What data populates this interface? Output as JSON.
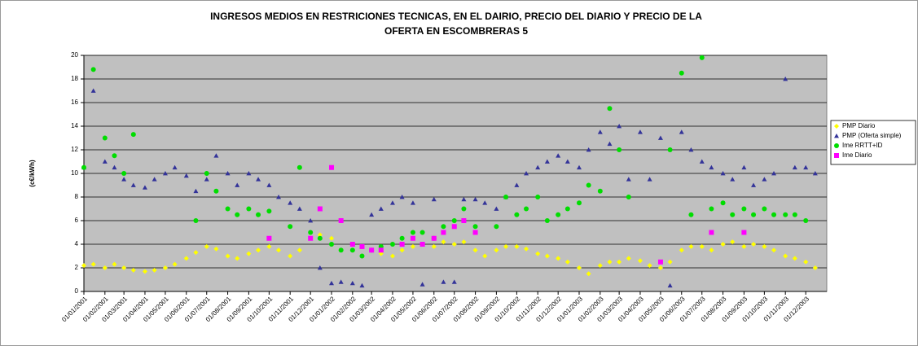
{
  "chart_data": {
    "type": "scatter",
    "title": [
      "INGRESOS MEDIOS EN RESTRICIONES TECNICAS, EN EL DAIRIO, PRECIO DEL DIARIO Y PRECIO DE LA",
      "OFERTA EN  ESCOMBRERAS 5"
    ],
    "y_label": "(c€/kWh)",
    "legend": "right",
    "grid": true,
    "ylim": [
      0,
      20
    ],
    "yticks": [
      0,
      2,
      4,
      6,
      8,
      10,
      12,
      14,
      16,
      18,
      20
    ],
    "xlim": [
      "01/01/2001",
      "01/01/2004"
    ],
    "xticks": [
      "01/01/2001",
      "01/02/2001",
      "01/03/2001",
      "01/04/2001",
      "01/05/2001",
      "01/06/2001",
      "01/07/2001",
      "01/08/2001",
      "01/09/2001",
      "01/10/2001",
      "01/11/2001",
      "01/12/2001",
      "01/01/2002",
      "01/02/2002",
      "01/03/2002",
      "01/04/2002",
      "01/05/2002",
      "01/06/2002",
      "01/07/2002",
      "01/08/2002",
      "01/09/2002",
      "01/10/2002",
      "01/11/2002",
      "01/12/2002",
      "01/01/2003",
      "01/02/2003",
      "01/03/2003",
      "01/04/2003",
      "01/05/2003",
      "01/06/2003",
      "01/07/2003",
      "01/08/2003",
      "01/09/2003",
      "01/10/2003",
      "01/11/2003",
      "01/12/2003"
    ],
    "x": [
      "01/01/2001",
      "15/01/2001",
      "01/02/2001",
      "15/02/2001",
      "01/03/2001",
      "15/03/2001",
      "01/04/2001",
      "15/04/2001",
      "01/05/2001",
      "15/05/2001",
      "01/06/2001",
      "15/06/2001",
      "01/07/2001",
      "15/07/2001",
      "01/08/2001",
      "15/08/2001",
      "01/09/2001",
      "15/09/2001",
      "01/10/2001",
      "15/10/2001",
      "01/11/2001",
      "15/11/2001",
      "01/12/2001",
      "15/12/2001",
      "01/01/2002",
      "15/01/2002",
      "01/02/2002",
      "15/02/2002",
      "01/03/2002",
      "15/03/2002",
      "01/04/2002",
      "15/04/2002",
      "01/05/2002",
      "15/05/2002",
      "01/06/2002",
      "15/06/2002",
      "01/07/2002",
      "15/07/2002",
      "01/08/2002",
      "15/08/2002",
      "01/09/2002",
      "15/09/2002",
      "01/10/2002",
      "15/10/2002",
      "01/11/2002",
      "15/11/2002",
      "01/12/2002",
      "15/12/2002",
      "01/01/2003",
      "15/01/2003",
      "01/02/2003",
      "15/02/2003",
      "01/03/2003",
      "15/03/2003",
      "01/04/2003",
      "15/04/2003",
      "01/05/2003",
      "15/05/2003",
      "01/06/2003",
      "15/06/2003",
      "01/07/2003",
      "15/07/2003",
      "01/08/2003",
      "15/08/2003",
      "01/09/2003",
      "15/09/2003",
      "01/10/2003",
      "15/10/2003",
      "01/11/2003",
      "15/11/2003",
      "01/12/2003",
      "15/12/2003"
    ],
    "series": [
      {
        "name": "PMP Diario",
        "color": "#ffff00",
        "marker": "diamond",
        "values": [
          2.2,
          2.3,
          2.0,
          2.3,
          2.0,
          1.8,
          1.7,
          1.8,
          2.0,
          2.3,
          2.8,
          3.3,
          3.8,
          3.6,
          3.0,
          2.8,
          3.2,
          3.5,
          3.8,
          3.5,
          3.0,
          3.5,
          4.5,
          4.8,
          4.5,
          3.5,
          3.5,
          3.8,
          3.5,
          3.2,
          3.0,
          3.5,
          3.8,
          4.0,
          3.8,
          4.2,
          4.0,
          4.2,
          3.5,
          3.0,
          3.5,
          3.8,
          3.8,
          3.6,
          3.2,
          3.0,
          2.8,
          2.5,
          2.0,
          1.5,
          2.2,
          2.5,
          2.5,
          2.8,
          2.6,
          2.2,
          2.0,
          2.5,
          3.5,
          3.8,
          3.8,
          3.5,
          4.0,
          4.2,
          3.8,
          4.0,
          3.8,
          3.5,
          3.0,
          2.8,
          2.5,
          2.0
        ]
      },
      {
        "name": "PMP (Oferta simple)",
        "color": "#333399",
        "marker": "triangle",
        "values": [
          10.5,
          17.0,
          11.0,
          10.5,
          9.5,
          9.0,
          8.8,
          9.5,
          10.0,
          10.5,
          9.8,
          8.5,
          9.5,
          11.5,
          10.0,
          9.0,
          10.0,
          9.5,
          9.0,
          8.0,
          7.5,
          7.0,
          6.0,
          2.0,
          0.7,
          0.8,
          0.7,
          0.5,
          6.5,
          7.0,
          7.5,
          8.0,
          7.5,
          0.6,
          7.8,
          0.8,
          0.8,
          7.8,
          7.8,
          7.5,
          7.0,
          8.0,
          9.0,
          10.0,
          10.5,
          11.0,
          11.5,
          11.0,
          10.5,
          12.0,
          13.5,
          12.5,
          14.0,
          9.5,
          13.5,
          9.5,
          13.0,
          0.5,
          13.5,
          12.0,
          11.0,
          10.5,
          10.0,
          9.5,
          10.5,
          9.0,
          9.5,
          10.0,
          18.0,
          10.5,
          10.5,
          10.0
        ]
      },
      {
        "name": "Ime RRTT+ID",
        "color": "#00dd00",
        "marker": "circle",
        "values": [
          10.5,
          18.8,
          13.0,
          11.5,
          10.0,
          13.3,
          null,
          null,
          null,
          null,
          null,
          6.0,
          10.0,
          8.5,
          7.0,
          6.5,
          7.0,
          6.5,
          6.8,
          null,
          5.5,
          10.5,
          5.0,
          4.5,
          4.0,
          3.5,
          3.5,
          3.0,
          3.5,
          3.8,
          4.0,
          4.5,
          5.0,
          5.0,
          4.5,
          5.5,
          6.0,
          7.0,
          5.5,
          null,
          5.5,
          8.0,
          6.5,
          7.0,
          8.0,
          6.0,
          6.5,
          7.0,
          7.5,
          9.0,
          8.5,
          15.5,
          12.0,
          8.0,
          null,
          null,
          null,
          12.0,
          18.5,
          6.5,
          19.8,
          7.0,
          7.5,
          6.5,
          7.0,
          6.5,
          7.0,
          6.5,
          6.5,
          6.5,
          6.0,
          null
        ]
      },
      {
        "name": "Ime Diario",
        "color": "#ff00ff",
        "marker": "square",
        "values": [
          null,
          null,
          null,
          null,
          null,
          null,
          null,
          null,
          null,
          null,
          null,
          null,
          null,
          null,
          null,
          null,
          null,
          null,
          4.5,
          null,
          null,
          null,
          4.5,
          7.0,
          10.5,
          6.0,
          4.0,
          3.8,
          3.5,
          3.5,
          null,
          4.0,
          4.5,
          4.0,
          4.5,
          5.0,
          5.5,
          6.0,
          5.0,
          null,
          null,
          null,
          null,
          null,
          null,
          null,
          null,
          null,
          null,
          null,
          null,
          null,
          null,
          null,
          null,
          null,
          2.5,
          null,
          null,
          null,
          null,
          5.0,
          null,
          null,
          5.0,
          null,
          null,
          null,
          null,
          null,
          null,
          null
        ]
      }
    ]
  }
}
